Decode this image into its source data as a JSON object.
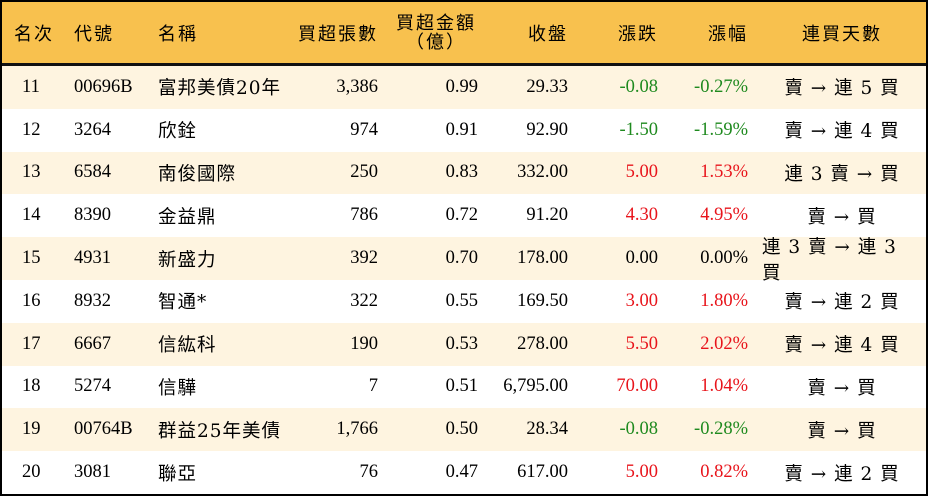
{
  "table": {
    "headers": {
      "rank": "名次",
      "code": "代號",
      "name": "名稱",
      "net_buy_lots": "買超張數",
      "net_buy_amount_l1": "買超金額",
      "net_buy_amount_l2": "（億）",
      "close": "收盤",
      "change": "漲跌",
      "change_pct": "漲幅",
      "consecutive_buy_days": "連買天數"
    },
    "colors": {
      "header_bg": "#F8C14E",
      "row_alt_bg": "#FEF4E0",
      "up": "#E8141B",
      "down": "#1F8A1F"
    },
    "rows": [
      {
        "rank": "11",
        "code": "00696B",
        "name": "富邦美債20年",
        "lots": "3,386",
        "amount": "0.99",
        "close": "29.33",
        "change": "-0.08",
        "pct": "-0.27%",
        "dir": "down",
        "streak": "賣 → 連 5 買"
      },
      {
        "rank": "12",
        "code": "3264",
        "name": "欣銓",
        "lots": "974",
        "amount": "0.91",
        "close": "92.90",
        "change": "-1.50",
        "pct": "-1.59%",
        "dir": "down",
        "streak": "賣 → 連 4 買"
      },
      {
        "rank": "13",
        "code": "6584",
        "name": "南俊國際",
        "lots": "250",
        "amount": "0.83",
        "close": "332.00",
        "change": "5.00",
        "pct": "1.53%",
        "dir": "up",
        "streak": "連 3 賣 → 買"
      },
      {
        "rank": "14",
        "code": "8390",
        "name": "金益鼎",
        "lots": "786",
        "amount": "0.72",
        "close": "91.20",
        "change": "4.30",
        "pct": "4.95%",
        "dir": "up",
        "streak": "賣 → 買"
      },
      {
        "rank": "15",
        "code": "4931",
        "name": "新盛力",
        "lots": "392",
        "amount": "0.70",
        "close": "178.00",
        "change": "0.00",
        "pct": "0.00%",
        "dir": "flat",
        "streak": "連 3 賣 → 連 3 買"
      },
      {
        "rank": "16",
        "code": "8932",
        "name": "智通*",
        "lots": "322",
        "amount": "0.55",
        "close": "169.50",
        "change": "3.00",
        "pct": "1.80%",
        "dir": "up",
        "streak": "賣 → 連 2 買"
      },
      {
        "rank": "17",
        "code": "6667",
        "name": "信紘科",
        "lots": "190",
        "amount": "0.53",
        "close": "278.00",
        "change": "5.50",
        "pct": "2.02%",
        "dir": "up",
        "streak": "賣 → 連 4 買"
      },
      {
        "rank": "18",
        "code": "5274",
        "name": "信驊",
        "lots": "7",
        "amount": "0.51",
        "close": "6,795.00",
        "change": "70.00",
        "pct": "1.04%",
        "dir": "up",
        "streak": "賣 → 買"
      },
      {
        "rank": "19",
        "code": "00764B",
        "name": "群益25年美債",
        "lots": "1,766",
        "amount": "0.50",
        "close": "28.34",
        "change": "-0.08",
        "pct": "-0.28%",
        "dir": "down",
        "streak": "賣 → 買"
      },
      {
        "rank": "20",
        "code": "3081",
        "name": "聯亞",
        "lots": "76",
        "amount": "0.47",
        "close": "617.00",
        "change": "5.00",
        "pct": "0.82%",
        "dir": "up",
        "streak": "賣 → 連 2 買"
      }
    ]
  }
}
